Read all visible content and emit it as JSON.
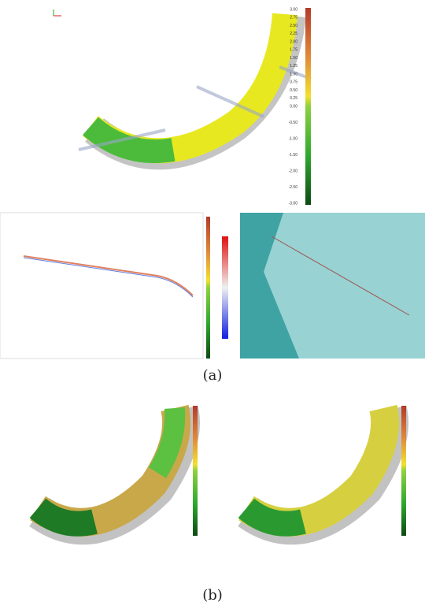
{
  "figure": {
    "panel_a": {
      "caption": "(a)",
      "scale_labels": [
        "3.00",
        "2.75",
        "2.50",
        "2.25",
        "2.00",
        "1.75",
        "1.50",
        "1.25",
        "1.00",
        "0.75",
        "0.50",
        "0.25",
        "0.00",
        "-0.50",
        "-1.00",
        "-1.50",
        "-2.00",
        "-2.50",
        "-3.00"
      ]
    },
    "panel_b": {
      "caption": "(b)"
    }
  }
}
